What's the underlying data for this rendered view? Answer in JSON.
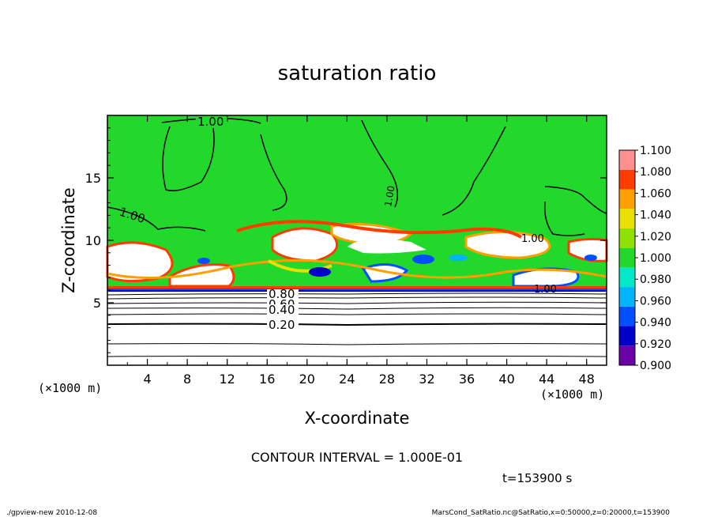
{
  "chart_data": {
    "type": "heatmap",
    "title": "saturation ratio",
    "xlabel": "X-coordinate",
    "ylabel": "Z-coordinate",
    "x_unit_left": "(×1000 m)",
    "x_unit_right": "(×1000 m)",
    "xlim": [
      0,
      50
    ],
    "ylim": [
      0,
      20
    ],
    "xticks": [
      "4",
      "8",
      "12",
      "16",
      "20",
      "24",
      "28",
      "32",
      "36",
      "40",
      "44",
      "48"
    ],
    "yticks": [
      "5",
      "10",
      "15"
    ],
    "colorbar_levels": [
      "0.900",
      "0.920",
      "0.940",
      "0.960",
      "0.980",
      "1.000",
      "1.020",
      "1.040",
      "1.060",
      "1.080",
      "1.100"
    ],
    "colorbar_colors": [
      "#6a00a8",
      "#0000c8",
      "#0050ff",
      "#00b4ff",
      "#00e8c8",
      "#22d82a",
      "#90e000",
      "#e8e000",
      "#ffa000",
      "#ff3c00",
      "#ff9090"
    ],
    "contour_labels": [
      "1.00",
      "1.00",
      "1.00",
      "1.00",
      "1.00",
      "0.80",
      "0.60",
      "0.40",
      "0.20"
    ],
    "contour_interval_text": "CONTOUR INTERVAL = 1.000E-01",
    "time_text": "t=153900 s",
    "footer_left": "./gpview-new  2010-12-08",
    "footer_right": "MarsCond_SatRatio.nc@SatRatio,x=0:50000,z=0:20000,t=153900",
    "colors": {
      "background": "#ffffff",
      "saturated_green": "#22d82a",
      "contour_line": "#000000"
    }
  }
}
